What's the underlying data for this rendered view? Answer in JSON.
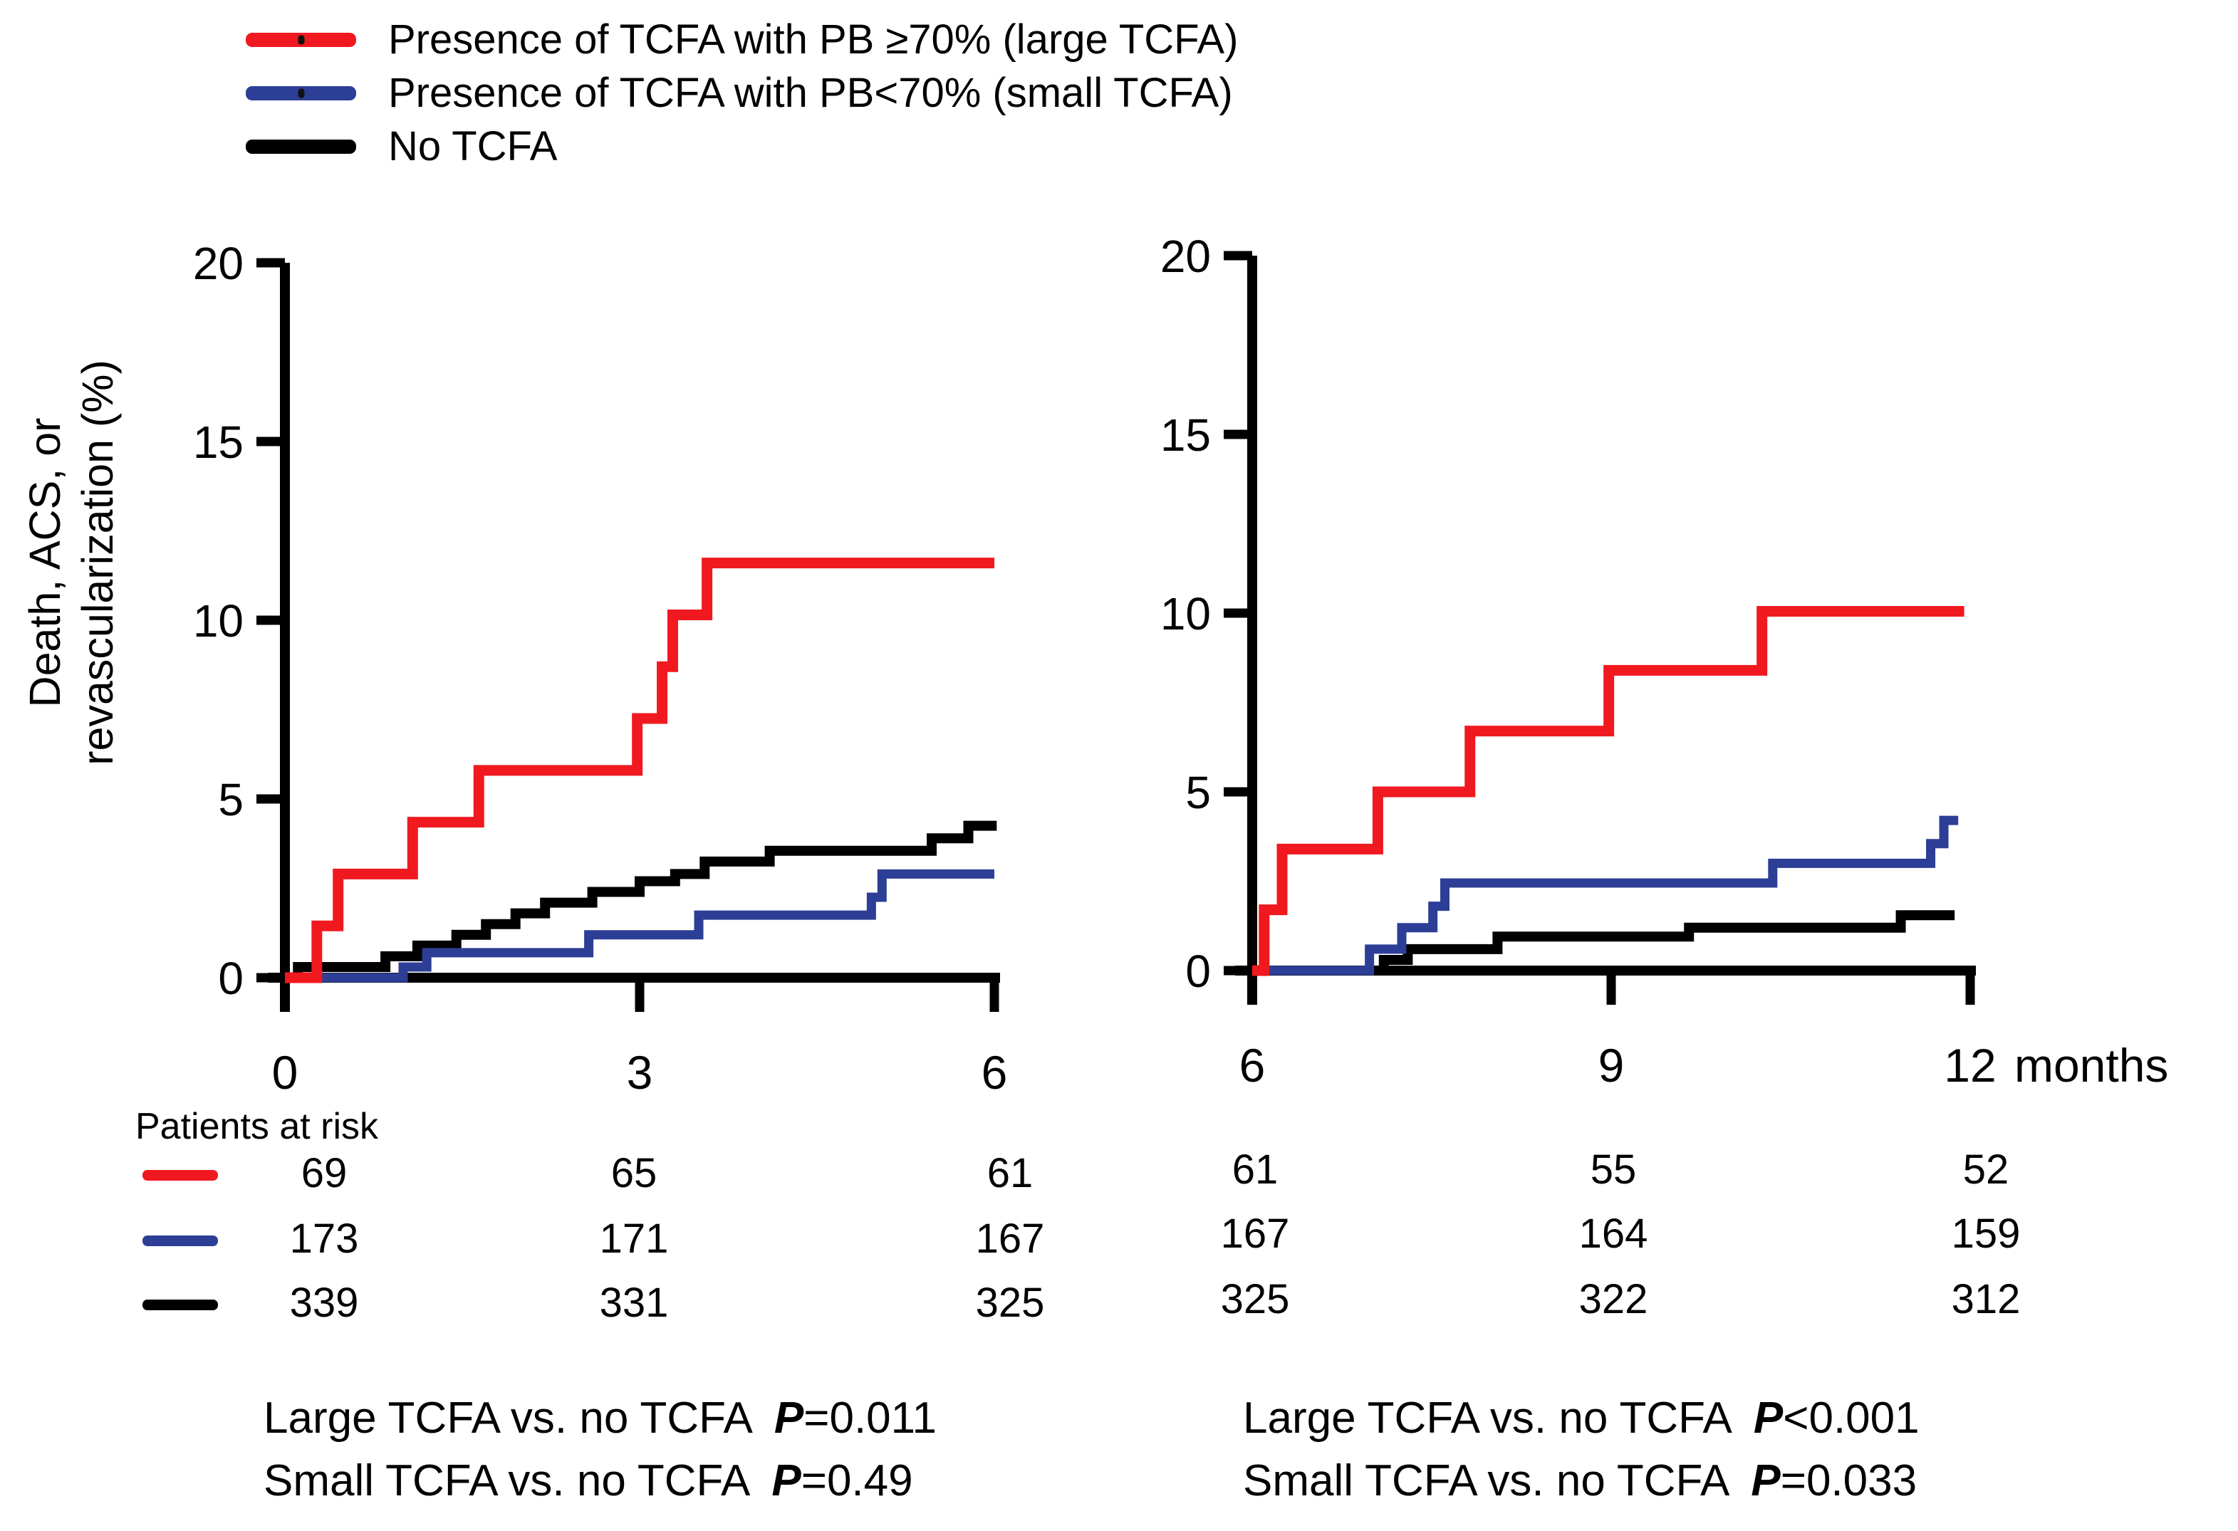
{
  "colors": {
    "red": "#f0191f",
    "blue": "#2c3e96",
    "black": "#000000"
  },
  "legend": {
    "items": [
      {
        "label": "Presence of TCFA with PB ≥70% (large TCFA)",
        "color": "red"
      },
      {
        "label": "Presence of TCFA with PB<70% (small TCFA)",
        "color": "blue"
      },
      {
        "label": "No TCFA",
        "color": "black"
      }
    ]
  },
  "y_axis_title_line1": "Death, ACS, or",
  "y_axis_title_line2": "revascularization (%)",
  "x_axis_unit": "months",
  "chart_data": {
    "type": "line",
    "subtype": "kaplan-meier-cumulative-incidence-step",
    "ylabel": "Death, ACS, or revascularization (%)",
    "ylim": [
      0,
      20
    ],
    "y_ticks": [
      0,
      5,
      10,
      15,
      20
    ],
    "grid": false,
    "legend_position": "top-left",
    "panels": [
      {
        "name": "0-6 months",
        "xlim": [
          0,
          6
        ],
        "x_ticks": [
          0,
          3,
          6
        ],
        "series": [
          {
            "name": "Presence of TCFA with PB ≥70% (large TCFA)",
            "color": "red",
            "steps": [
              [
                0,
                0
              ],
              [
                0.27,
                1.45
              ],
              [
                0.45,
                2.9
              ],
              [
                1.08,
                4.35
              ],
              [
                1.64,
                5.8
              ],
              [
                2.98,
                7.25
              ],
              [
                3.19,
                8.7
              ],
              [
                3.28,
                10.15
              ],
              [
                3.57,
                11.6
              ]
            ],
            "end_x": 6.0
          },
          {
            "name": "Presence of TCFA with PB<70% (small TCFA)",
            "color": "blue",
            "steps": [
              [
                0,
                0
              ],
              [
                1.0,
                0.3
              ],
              [
                1.2,
                0.7
              ],
              [
                2.57,
                1.2
              ],
              [
                3.5,
                1.75
              ],
              [
                4.96,
                2.25
              ],
              [
                5.05,
                2.9
              ]
            ],
            "end_x": 6.0
          },
          {
            "name": "No TCFA",
            "color": "black",
            "steps": [
              [
                0,
                0
              ],
              [
                0.11,
                0.3
              ],
              [
                0.85,
                0.6
              ],
              [
                1.12,
                0.9
              ],
              [
                1.45,
                1.2
              ],
              [
                1.7,
                1.5
              ],
              [
                1.95,
                1.8
              ],
              [
                2.2,
                2.1
              ],
              [
                2.6,
                2.4
              ],
              [
                3.0,
                2.7
              ],
              [
                3.3,
                2.9
              ],
              [
                3.55,
                3.25
              ],
              [
                4.1,
                3.55
              ],
              [
                5.47,
                3.9
              ],
              [
                5.78,
                4.25
              ]
            ],
            "end_x": 6.02
          }
        ]
      },
      {
        "name": "6-12 months",
        "xlim": [
          6,
          12
        ],
        "x_ticks": [
          6,
          9,
          12
        ],
        "series": [
          {
            "name": "Presence of TCFA with PB ≥70% (large TCFA)",
            "color": "red",
            "steps": [
              [
                6,
                0
              ],
              [
                6.1,
                1.7
              ],
              [
                6.25,
                3.4
              ],
              [
                7.05,
                5.0
              ],
              [
                7.82,
                6.7
              ],
              [
                8.98,
                8.4
              ],
              [
                10.26,
                10.05
              ]
            ],
            "end_x": 11.95
          },
          {
            "name": "Presence of TCFA with PB<70% (small TCFA)",
            "color": "blue",
            "steps": [
              [
                6,
                0
              ],
              [
                6.98,
                0.6
              ],
              [
                7.25,
                1.2
              ],
              [
                7.51,
                1.8
              ],
              [
                7.61,
                2.45
              ],
              [
                10.35,
                3.0
              ],
              [
                11.67,
                3.55
              ],
              [
                11.78,
                4.2
              ]
            ],
            "end_x": 11.9
          },
          {
            "name": "No TCFA",
            "color": "black",
            "steps": [
              [
                6,
                0
              ],
              [
                7.1,
                0.3
              ],
              [
                7.3,
                0.6
              ],
              [
                8.05,
                0.95
              ],
              [
                9.65,
                1.2
              ],
              [
                11.42,
                1.55
              ]
            ],
            "end_x": 11.87
          }
        ]
      }
    ]
  },
  "patients_at_risk": {
    "title": "Patients at risk",
    "rows": [
      {
        "color": "red",
        "left": [
          "69",
          "65",
          "61"
        ],
        "right": [
          "61",
          "55",
          "52"
        ]
      },
      {
        "color": "blue",
        "left": [
          "173",
          "171",
          "167"
        ],
        "right": [
          "167",
          "164",
          "159"
        ]
      },
      {
        "color": "black",
        "left": [
          "339",
          "331",
          "325"
        ],
        "right": [
          "325",
          "322",
          "312"
        ]
      }
    ]
  },
  "stats": {
    "left": [
      {
        "label": "Large TCFA vs. no TCFA",
        "p": "P",
        "value": "=0.011"
      },
      {
        "label": "Small TCFA vs. no TCFA",
        "p": "P",
        "value": "=0.49"
      }
    ],
    "right": [
      {
        "label": "Large TCFA vs. no TCFA",
        "p": "P",
        "value": "<0.001"
      },
      {
        "label": "Small TCFA vs. no TCFA",
        "p": "P",
        "value": "=0.033"
      }
    ]
  }
}
